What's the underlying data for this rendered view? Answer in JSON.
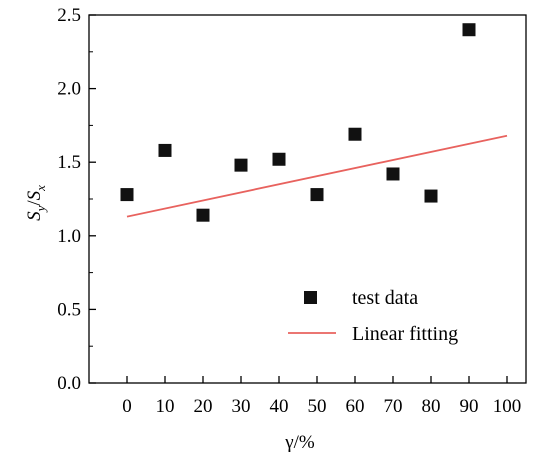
{
  "chart_data": {
    "type": "scatter",
    "title": "",
    "xlabel": "γ/%",
    "ylabel_main": "S",
    "ylabel_sub1": "y",
    "ylabel_sep": "/",
    "ylabel_sub2": "x",
    "xlim": [
      -10,
      105
    ],
    "ylim": [
      0.0,
      2.5
    ],
    "xticks": [
      0,
      10,
      20,
      30,
      40,
      50,
      60,
      70,
      80,
      90,
      100
    ],
    "xtick_labels": [
      "0",
      "10",
      "20",
      "30",
      "40",
      "50",
      "60",
      "70",
      "80",
      "90",
      "100"
    ],
    "yticks": [
      0.0,
      0.5,
      1.0,
      1.5,
      2.0,
      2.5
    ],
    "ytick_labels": [
      "0.0",
      "0.5",
      "1.0",
      "1.5",
      "2.0",
      "2.5"
    ],
    "grid": false,
    "legend_position": "bottom-right",
    "series": [
      {
        "name": "test data",
        "kind": "scatter",
        "marker": "square",
        "color": "#111111",
        "x": [
          0,
          10,
          20,
          30,
          40,
          50,
          60,
          70,
          80,
          90
        ],
        "y": [
          1.28,
          1.58,
          1.14,
          1.48,
          1.52,
          1.28,
          1.69,
          1.42,
          1.27,
          2.4
        ]
      },
      {
        "name": "Linear fitting",
        "kind": "line",
        "color": "#e8625e",
        "x": [
          0,
          100
        ],
        "y": [
          1.13,
          1.68
        ]
      }
    ]
  }
}
